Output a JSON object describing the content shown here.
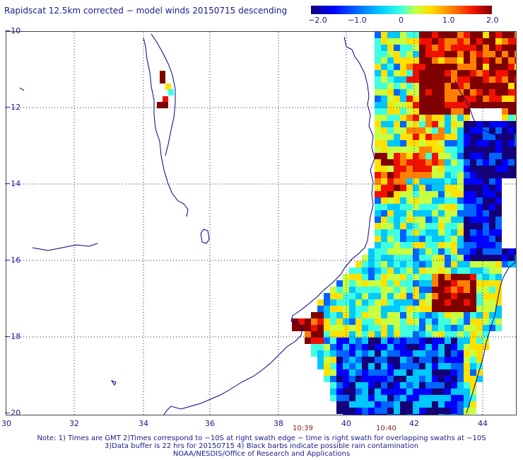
{
  "title": "Rapidscat 12.5km corrected − model winds 20150715 descending",
  "colorbar": {
    "labels": [
      "−2.0",
      "−1.0",
      "0",
      "1.0",
      "2.0"
    ],
    "min": -2.0,
    "max": 2.0
  },
  "axes": {
    "lon_labels": [
      "30",
      "32",
      "34",
      "36",
      "38",
      "40",
      "42",
      "44"
    ],
    "lat_labels": [
      "−10",
      "−12",
      "−14",
      "−16",
      "−18",
      "−20"
    ]
  },
  "time_labels": [
    "10:39",
    "10:40"
  ],
  "notes": [
    "Note: 1) Times are GMT 2)Times correspond to −10S at right swath edge − time is right swath for overlapping swaths at −10S",
    "3)Data buffer is 22 hrs for 20150715 4) Black barbs indicate possible rain contamination",
    "NOAA/NESDIS/Office of Research and Applications"
  ],
  "colors": {
    "coastline": "#00008b",
    "grid": "#1a1a8c",
    "text": "#1a1a8c",
    "time_text": "#8b1a1a"
  }
}
